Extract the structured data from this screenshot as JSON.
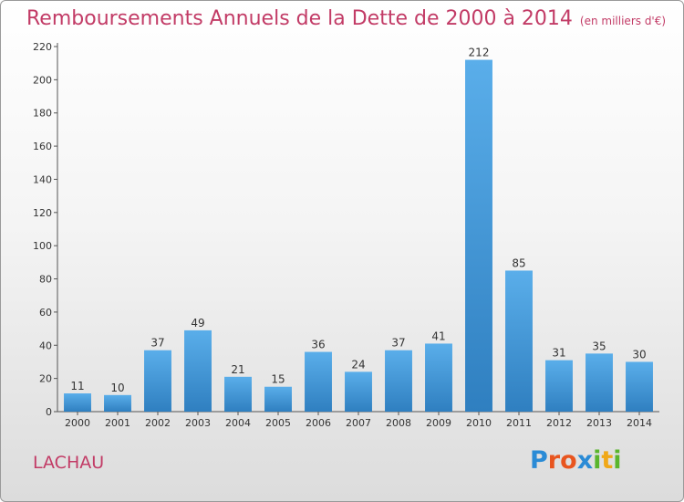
{
  "header": {
    "title": "Remboursements Annuels de la Dette de 2000 à 2014",
    "unit": "(en milliers d'€)"
  },
  "footer": {
    "commune": "LACHAU",
    "brand": "Proxiti"
  },
  "colors": {
    "title": "#c23b66",
    "bar_light": "#5aaeea",
    "bar_dark": "#2f7fc0",
    "brand_letters": [
      "#2a8bd6",
      "#e8551f",
      "#e8551f",
      "#2a8bd6",
      "#5ab52c",
      "#f0a818",
      "#5ab52c"
    ]
  },
  "chart_data": {
    "type": "bar",
    "categories": [
      "2000",
      "2001",
      "2002",
      "2003",
      "2004",
      "2005",
      "2006",
      "2007",
      "2008",
      "2009",
      "2010",
      "2011",
      "2012",
      "2013",
      "2014"
    ],
    "values": [
      11,
      10,
      37,
      49,
      21,
      15,
      36,
      24,
      37,
      41,
      212,
      85,
      31,
      35,
      30
    ],
    "title": "Remboursements Annuels de la Dette de 2000 à 2014",
    "ylim": [
      0,
      220
    ],
    "yticks": [
      0,
      20,
      40,
      60,
      80,
      100,
      120,
      140,
      160,
      180,
      200,
      220
    ],
    "grid": false,
    "data_labels": true
  }
}
